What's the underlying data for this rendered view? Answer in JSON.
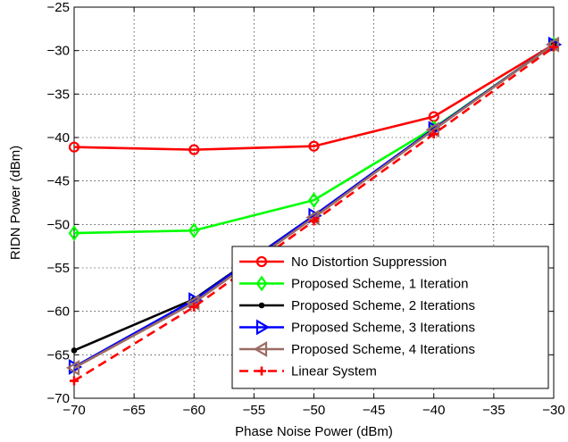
{
  "chart_data": {
    "type": "line",
    "title": "",
    "xlabel": "Phase Noise Power (dBm)",
    "ylabel": "RIDN Power (dBm)",
    "xlim": [
      -70,
      -30
    ],
    "ylim": [
      -70,
      -25
    ],
    "xticks": [
      -70,
      -65,
      -60,
      -55,
      -50,
      -45,
      -40,
      -35,
      -30
    ],
    "yticks": [
      -70,
      -65,
      -60,
      -55,
      -50,
      -45,
      -40,
      -35,
      -30,
      -25
    ],
    "xtick_labels": [
      "−70",
      "−65",
      "−60",
      "−55",
      "−50",
      "−45",
      "−40",
      "−35",
      "−30"
    ],
    "ytick_labels": [
      "−70",
      "−65",
      "−60",
      "−55",
      "−50",
      "−45",
      "−40",
      "−35",
      "−30",
      "−25"
    ],
    "grid": true,
    "legend_position": "lower-right",
    "x": [
      -70,
      -60,
      -50,
      -40,
      -30
    ],
    "series": [
      {
        "name": "No Distortion Suppression",
        "values": [
          -41.1,
          -41.4,
          -41.0,
          -37.6,
          -29.3
        ],
        "color": "#ff0000",
        "marker": "circle",
        "dash": "solid"
      },
      {
        "name": "Proposed Scheme, 1  Iteration",
        "values": [
          -51.0,
          -50.7,
          -47.2,
          -38.9,
          -29.3
        ],
        "color": "#00ff00",
        "marker": "diamond",
        "dash": "solid"
      },
      {
        "name": "Proposed Scheme, 2  Iterations",
        "values": [
          -64.5,
          -58.6,
          -49.0,
          -39.0,
          -29.3
        ],
        "color": "#000000",
        "marker": "dot",
        "dash": "solid"
      },
      {
        "name": "Proposed Scheme, 3  Iterations",
        "values": [
          -66.4,
          -58.7,
          -49.0,
          -39.0,
          -29.3
        ],
        "color": "#0000ff",
        "marker": "triangle-right",
        "dash": "solid"
      },
      {
        "name": "Proposed Scheme, 4  Iterations",
        "values": [
          -66.5,
          -59.0,
          -49.2,
          -39.1,
          -29.3
        ],
        "color": "#9b6b63",
        "marker": "triangle-left",
        "dash": "solid"
      },
      {
        "name": "Linear System",
        "values": [
          -68.0,
          -59.5,
          -49.6,
          -39.6,
          -29.6
        ],
        "color": "#ff0000",
        "marker": "plus",
        "dash": "dashed"
      }
    ]
  }
}
